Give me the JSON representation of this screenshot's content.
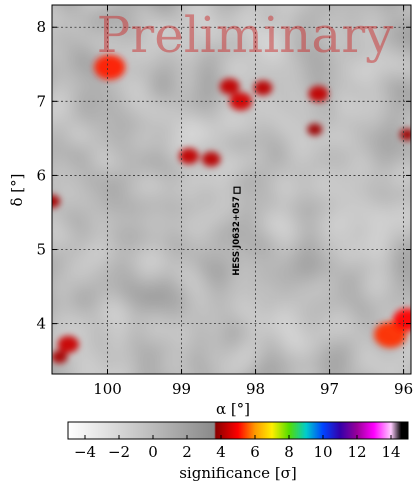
{
  "chart_data": {
    "type": "heatmap",
    "title": "",
    "watermark": "Preliminary",
    "xlabel": "α [°]",
    "ylabel": "δ [°]",
    "x_axis": {
      "ticks": [
        100,
        99,
        98,
        97,
        96
      ],
      "tick_labels": [
        "100",
        "99",
        "98",
        "97",
        "96"
      ],
      "range": [
        100.75,
        95.9
      ],
      "reversed": true
    },
    "y_axis": {
      "ticks": [
        4,
        5,
        6,
        7,
        8
      ],
      "tick_labels": [
        "4",
        "5",
        "6",
        "7",
        "8"
      ],
      "range": [
        3.32,
        8.3
      ]
    },
    "grid": "dashed",
    "colorbar": {
      "label": "significance [σ]",
      "range": [
        -5,
        15
      ],
      "ticks": [
        -4,
        -2,
        0,
        2,
        4,
        6,
        8,
        10,
        12,
        14
      ],
      "tick_labels": [
        "−4",
        "−2",
        "0",
        "2",
        "4",
        "6",
        "8",
        "10",
        "12",
        "14"
      ],
      "stops": [
        {
          "value": -5,
          "color": "#ffffff"
        },
        {
          "value": 3.6,
          "color": "#8a8a8a"
        },
        {
          "value": 3.7,
          "color": "#8b0000"
        },
        {
          "value": 5,
          "color": "#ff0000"
        },
        {
          "value": 6,
          "color": "#ff9900"
        },
        {
          "value": 7,
          "color": "#ffee00"
        },
        {
          "value": 8,
          "color": "#55dd00"
        },
        {
          "value": 9,
          "color": "#00cccc"
        },
        {
          "value": 10,
          "color": "#0044ff"
        },
        {
          "value": 11,
          "color": "#3300aa"
        },
        {
          "value": 12,
          "color": "#990099"
        },
        {
          "value": 13,
          "color": "#ff00ff"
        },
        {
          "value": 14,
          "color": "#ffccff"
        },
        {
          "value": 14.6,
          "color": "#000000"
        }
      ]
    },
    "source": {
      "label": "HESS J0632+057",
      "ra": 98.25,
      "dec": 5.8
    },
    "hotspots": [
      {
        "ra": 99.97,
        "dec": 7.46,
        "significance": 5.2
      },
      {
        "ra": 98.2,
        "dec": 7.0,
        "significance": 4.5
      },
      {
        "ra": 98.35,
        "dec": 7.2,
        "significance": 4.3
      },
      {
        "ra": 97.9,
        "dec": 7.18,
        "significance": 4.2
      },
      {
        "ra": 97.15,
        "dec": 7.1,
        "significance": 4.3
      },
      {
        "ra": 98.9,
        "dec": 6.26,
        "significance": 4.3
      },
      {
        "ra": 98.6,
        "dec": 6.22,
        "significance": 4.2
      },
      {
        "ra": 97.2,
        "dec": 6.62,
        "significance": 3.9
      },
      {
        "ra": 96.18,
        "dec": 3.85,
        "significance": 5.3
      },
      {
        "ra": 95.95,
        "dec": 4.05,
        "significance": 5.0
      },
      {
        "ra": 100.53,
        "dec": 3.72,
        "significance": 4.4
      },
      {
        "ra": 100.65,
        "dec": 3.55,
        "significance": 4.0
      },
      {
        "ra": 100.75,
        "dec": 5.65,
        "significance": 4.0
      },
      {
        "ra": 95.95,
        "dec": 6.55,
        "significance": 3.9
      }
    ]
  }
}
